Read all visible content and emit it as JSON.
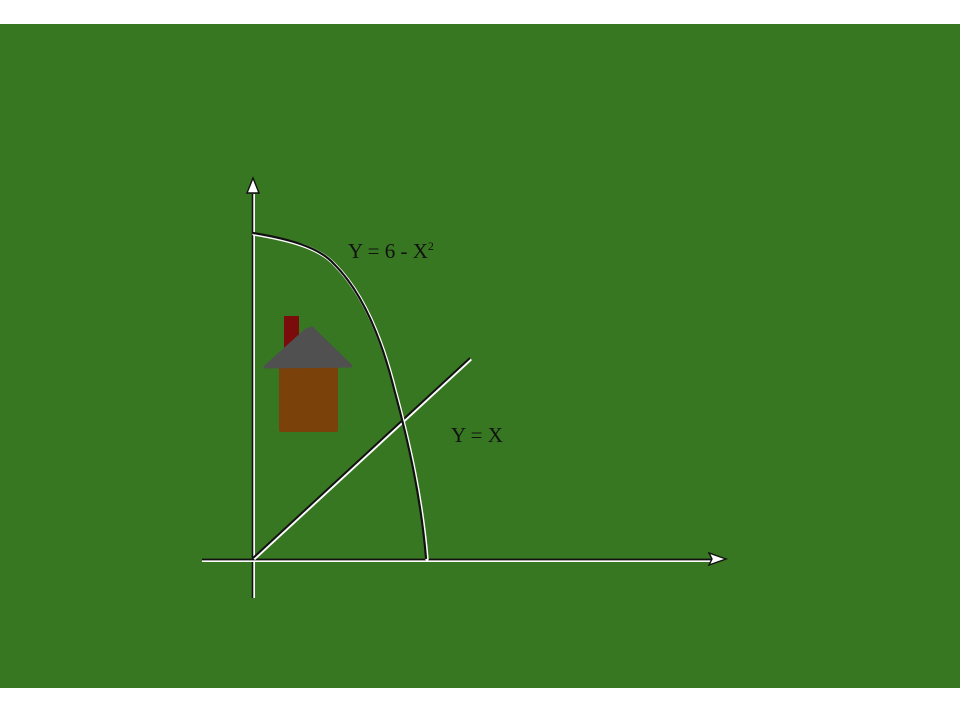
{
  "labels": {
    "curve_main": "Y = 6 - X",
    "curve_exponent": "2",
    "line": "Y = X"
  },
  "colors": {
    "background": "#387721",
    "ink": "#111111",
    "highlight": "#ffffff",
    "house_wall": "#7b410b",
    "house_roof": "#505050",
    "chimney": "#7a0c0c"
  },
  "icons": {
    "x_axis_arrow": "arrowhead-right",
    "y_axis_arrow": "arrowhead-up",
    "house": "house-icon"
  }
}
